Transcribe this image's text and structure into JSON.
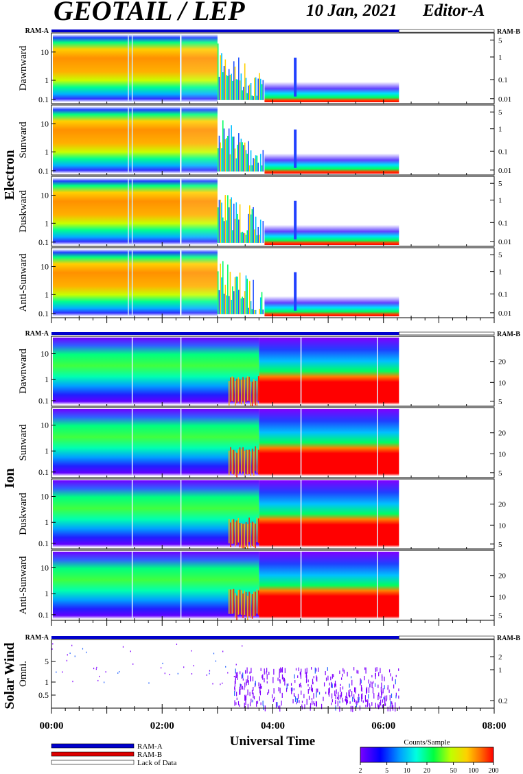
{
  "header": {
    "mission": "GEOTAIL / LEP",
    "date": "10 Jan, 2021",
    "editor": "Editor-A"
  },
  "chart_data": {
    "type": "heatmap",
    "xlabel": "Universal Time",
    "x_ticks": [
      "00:00",
      "02:00",
      "04:00",
      "06:00",
      "08:00"
    ],
    "x_range_hours": [
      0,
      8
    ],
    "data_end_hours": 6.28,
    "groups": [
      {
        "name": "Electron",
        "left_ticks": [
          "10",
          "1",
          "0.1"
        ],
        "right_ticks": [
          "5",
          "1",
          "0.1",
          "0.01"
        ],
        "status_left": "RAM-A",
        "status_right": "RAM-B",
        "panels": [
          {
            "label": "Dawnward"
          },
          {
            "label": "Sunward"
          },
          {
            "label": "Duskward"
          },
          {
            "label": "Anti-Sunward"
          }
        ]
      },
      {
        "name": "Ion",
        "left_ticks": [
          "10",
          "1",
          "0.1"
        ],
        "right_ticks": [
          "20",
          "10",
          "5"
        ],
        "status_left": "RAM-A",
        "status_right": "RAM-B",
        "panels": [
          {
            "label": "Dawnward"
          },
          {
            "label": "Sunward"
          },
          {
            "label": "Duskward"
          },
          {
            "label": "Anti-Sunward"
          }
        ]
      },
      {
        "name": "Solar Wind",
        "left_ticks": [
          "5",
          "1",
          "0.5"
        ],
        "right_ticks": [
          "2",
          "1",
          "0.2"
        ],
        "status_left": "RAM-A",
        "status_right": "RAM-B",
        "panels": [
          {
            "label": "Omni."
          }
        ]
      }
    ],
    "legend": [
      {
        "label": "RAM-A",
        "color": "#0000cc"
      },
      {
        "label": "RAM-B",
        "color": "#dd0000"
      },
      {
        "label": "Lack of Data",
        "color": "#ffffff"
      }
    ],
    "colorbar": {
      "title": "Counts/Sample",
      "ticks": [
        "2",
        "5",
        "10",
        "20",
        "50",
        "100",
        "200"
      ],
      "range": [
        2,
        200
      ],
      "scale": "log"
    }
  },
  "colors": {
    "ram_a": "#0000cc",
    "ram_b": "#dd0000",
    "lack_of_data": "#ffffff"
  }
}
